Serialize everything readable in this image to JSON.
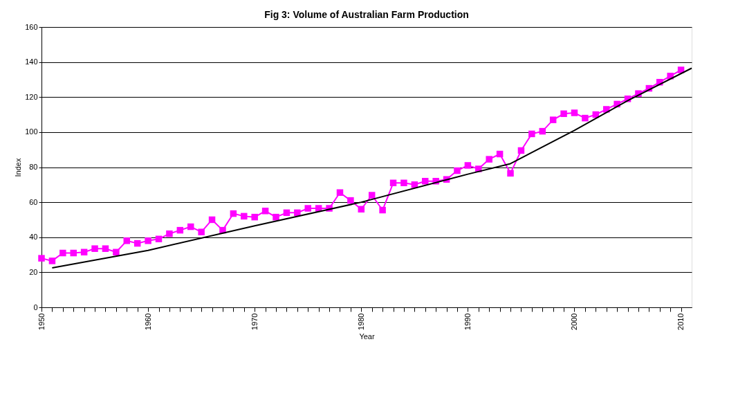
{
  "chart_data": {
    "type": "line",
    "title": "Fig 3: Volume of Australian Farm Production",
    "xlabel": "Year",
    "ylabel": "Index",
    "x": [
      1950,
      1951,
      1952,
      1953,
      1954,
      1955,
      1956,
      1957,
      1958,
      1959,
      1960,
      1961,
      1962,
      1963,
      1964,
      1965,
      1966,
      1967,
      1968,
      1969,
      1970,
      1971,
      1972,
      1973,
      1974,
      1975,
      1976,
      1977,
      1978,
      1979,
      1980,
      1981,
      1982,
      1983,
      1984,
      1985,
      1986,
      1987,
      1988,
      1989,
      1990,
      1991,
      1992,
      1993,
      1994,
      1995,
      1996,
      1997,
      1998,
      1999,
      2000,
      2001,
      2002,
      2003,
      2004,
      2005,
      2006,
      2007,
      2008,
      2009,
      2010
    ],
    "series": [
      {
        "color": "#ff00ff",
        "marker": "square",
        "values": [
          28,
          26.5,
          31,
          31,
          31.5,
          33.5,
          33.5,
          31.5,
          38,
          36.5,
          38,
          39,
          42,
          44,
          46,
          43,
          50,
          44,
          53.5,
          52,
          51.5,
          55,
          51.5,
          54,
          54,
          56.5,
          56.5,
          56.5,
          65.5,
          61,
          56,
          64,
          55.5,
          71,
          71,
          70,
          72,
          72,
          73,
          78,
          81,
          79,
          84.5,
          87.5,
          76.5,
          89.5,
          99,
          100.5,
          107,
          110.5,
          111,
          108,
          110,
          113,
          116,
          119,
          122,
          125,
          128.5,
          132,
          135.5
        ]
      },
      {
        "type": "line",
        "color": "#000000",
        "marker": "none",
        "x": [
          1951,
          1960,
          1970,
          1980,
          1990,
          1994,
          2000,
          2005,
          2011
        ],
        "values": [
          22.5,
          32.5,
          46.5,
          60,
          76,
          82,
          101,
          118,
          136.5
        ]
      }
    ],
    "xlim": [
      1950,
      2011
    ],
    "xticks": [
      1950,
      {
        "value": 1951,
        "label": null
      },
      {
        "value": 1952,
        "label": null
      },
      {
        "value": 1953,
        "label": null
      },
      {
        "value": 1954,
        "label": null
      },
      {
        "value": 1955,
        "label": null
      },
      {
        "value": 1956,
        "label": null
      },
      {
        "value": 1957,
        "label": null
      },
      {
        "value": 1958,
        "label": null
      },
      {
        "value": 1959,
        "label": null
      },
      1960,
      {
        "value": 1961,
        "label": null
      },
      {
        "value": 1962,
        "label": null
      },
      {
        "value": 1963,
        "label": null
      },
      {
        "value": 1964,
        "label": null
      },
      {
        "value": 1965,
        "label": null
      },
      {
        "value": 1966,
        "label": null
      },
      {
        "value": 1967,
        "label": null
      },
      {
        "value": 1968,
        "label": null
      },
      {
        "value": 1969,
        "label": null
      },
      1970,
      {
        "value": 1971,
        "label": null
      },
      {
        "value": 1972,
        "label": null
      },
      {
        "value": 1973,
        "label": null
      },
      {
        "value": 1974,
        "label": null
      },
      {
        "value": 1975,
        "label": null
      },
      {
        "value": 1976,
        "label": null
      },
      {
        "value": 1977,
        "label": null
      },
      {
        "value": 1978,
        "label": null
      },
      {
        "value": 1979,
        "label": null
      },
      1980,
      {
        "value": 1981,
        "label": null
      },
      {
        "value": 1982,
        "label": null
      },
      {
        "value": 1983,
        "label": null
      },
      {
        "value": 1984,
        "label": null
      },
      {
        "value": 1985,
        "label": null
      },
      {
        "value": 1986,
        "label": null
      },
      {
        "value": 1987,
        "label": null
      },
      {
        "value": 1988,
        "label": null
      },
      {
        "value": 1989,
        "label": null
      },
      1990,
      {
        "value": 1991,
        "label": null
      },
      {
        "value": 1992,
        "label": null
      },
      {
        "value": 1993,
        "label": null
      },
      {
        "value": 1994,
        "label": null
      },
      {
        "value": 1995,
        "label": null
      },
      {
        "value": 1996,
        "label": null
      },
      {
        "value": 1997,
        "label": null
      },
      {
        "value": 1998,
        "label": null
      },
      {
        "value": 1999,
        "label": null
      },
      2000,
      {
        "value": 2001,
        "label": null
      },
      {
        "value": 2002,
        "label": null
      },
      {
        "value": 2003,
        "label": null
      },
      {
        "value": 2004,
        "label": null
      },
      {
        "value": 2005,
        "label": null
      },
      {
        "value": 2006,
        "label": null
      },
      {
        "value": 2007,
        "label": null
      },
      {
        "value": 2008,
        "label": null
      },
      {
        "value": 2009,
        "label": null
      },
      2010
    ],
    "ylim": [
      0,
      160
    ],
    "yticks": [
      0,
      20,
      40,
      60,
      80,
      100,
      120,
      140,
      160
    ],
    "grid": "y",
    "legend": false,
    "line_style": "solid"
  }
}
